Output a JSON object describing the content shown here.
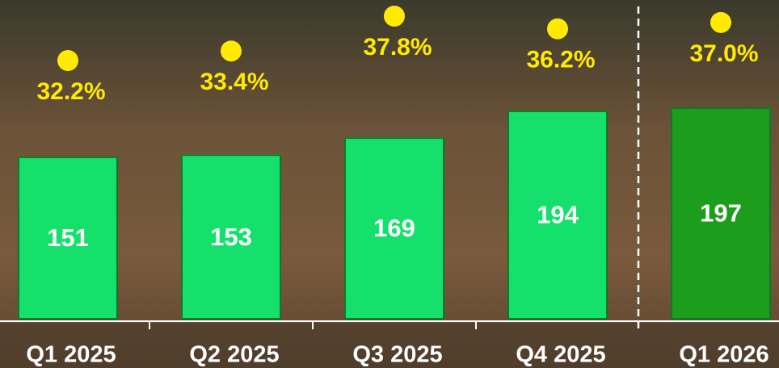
{
  "chart_data": {
    "type": "bar",
    "categories": [
      "Q1 2025",
      "Q2 2025",
      "Q3 2025",
      "Q4 2025",
      "Q1 2026"
    ],
    "values": [
      151,
      153,
      169,
      194,
      197
    ],
    "colors": [
      "#17e06c",
      "#17e06c",
      "#17e06c",
      "#17e06c",
      "#1a9e1e"
    ],
    "rate": {
      "values": [
        32.2,
        33.4,
        37.8,
        36.2,
        37.0
      ],
      "value_labels": [
        "32.2%",
        "33.4%",
        "37.8%",
        "36.2%",
        "37.0%"
      ],
      "color": "#ffea00"
    }
  }
}
